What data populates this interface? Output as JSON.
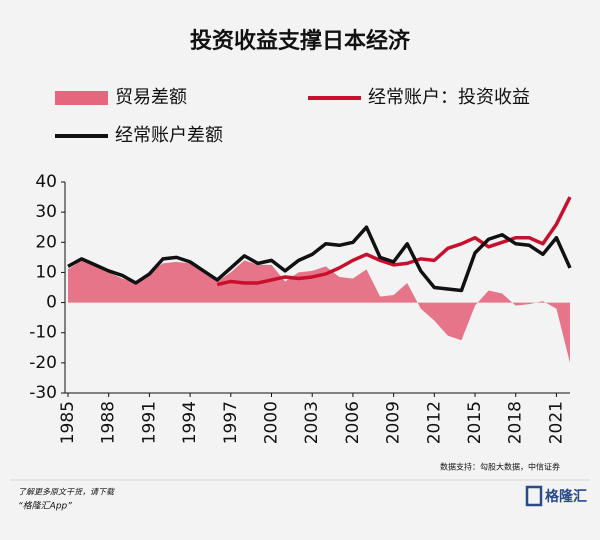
{
  "chart_data": {
    "type": "line",
    "title": "投资收益支撑日本经济",
    "source": "数据支持：勾股大数据，中信证券",
    "footer_lines": [
      "了解更多原文干货，请下载",
      "“格隆汇App”"
    ],
    "logo": "格隆汇",
    "x": [
      1985,
      1986,
      1987,
      1988,
      1989,
      1990,
      1991,
      1992,
      1993,
      1994,
      1995,
      1996,
      1997,
      1998,
      1999,
      2000,
      2001,
      2002,
      2003,
      2004,
      2005,
      2006,
      2007,
      2008,
      2009,
      2010,
      2011,
      2012,
      2013,
      2014,
      2015,
      2016,
      2017,
      2018,
      2019,
      2020,
      2021,
      2022
    ],
    "series": [
      {
        "name": "贸易差额",
        "color": "#e4677e",
        "style": "area",
        "values": [
          11,
          14,
          12,
          10,
          8,
          6.5,
          10,
          13,
          13.5,
          13,
          11,
          7,
          10,
          14,
          12.5,
          12.5,
          7,
          10,
          10.5,
          12,
          8.5,
          8,
          11,
          2,
          2.5,
          6.5,
          -2,
          -6,
          -11,
          -12.5,
          -1,
          4,
          3,
          -1,
          -0.5,
          0.5,
          -2,
          -20
        ]
      },
      {
        "name": "经常账户：投资收益",
        "color": "#c8102e",
        "style": "line",
        "values": [
          null,
          null,
          null,
          null,
          null,
          null,
          null,
          null,
          null,
          null,
          null,
          6,
          7,
          6.5,
          6.5,
          7.5,
          8.5,
          8,
          8.5,
          9.5,
          11.5,
          14,
          16,
          14,
          12.5,
          13,
          14.5,
          14,
          18,
          19.5,
          21.5,
          18.5,
          20,
          21.5,
          21.5,
          19.5,
          26,
          35
        ]
      },
      {
        "name": "经常账户差额",
        "color": "#111111",
        "style": "line",
        "values": [
          12,
          14.5,
          12.5,
          10.5,
          9,
          6.5,
          9.5,
          14.5,
          15,
          13.5,
          10.5,
          7.5,
          11.5,
          15.5,
          13,
          14,
          10.5,
          14,
          16,
          19.5,
          19,
          20,
          25,
          15,
          13.5,
          19.5,
          10.5,
          5,
          4.5,
          4,
          16.5,
          21,
          22.5,
          19.5,
          19,
          16,
          21.5,
          11.5
        ]
      }
    ],
    "xlim": [
      1985,
      2022
    ],
    "xticks": [
      1985,
      1988,
      1991,
      1994,
      1997,
      2000,
      2003,
      2006,
      2009,
      2012,
      2015,
      2018,
      2021
    ],
    "ylim": [
      -30,
      40
    ],
    "yticks": [
      -30,
      -20,
      -10,
      0,
      10,
      20,
      30,
      40
    ],
    "grid": false
  }
}
